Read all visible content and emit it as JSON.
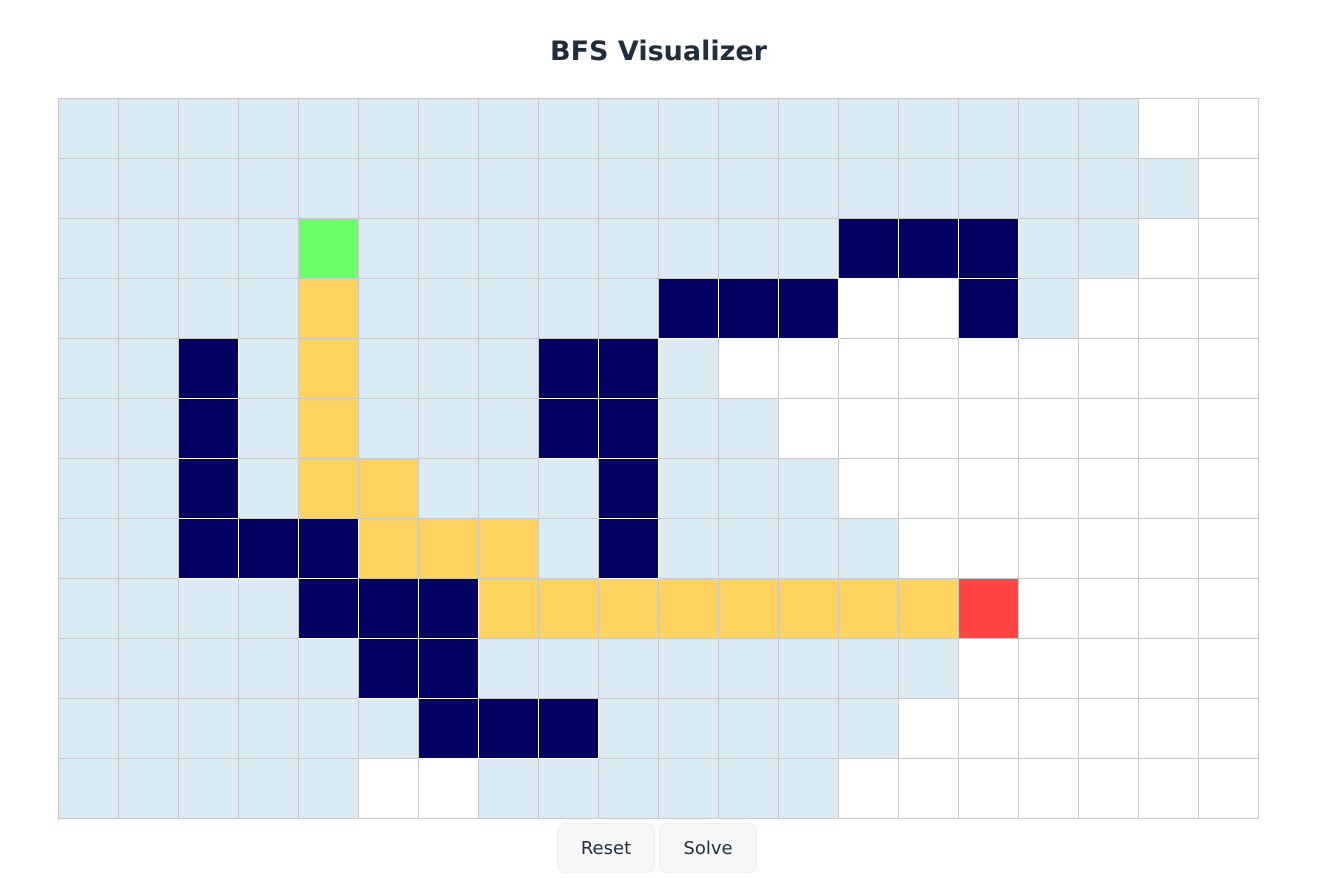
{
  "title": "BFS Visualizer",
  "controls": {
    "reset_label": "Reset",
    "solve_label": "Solve"
  },
  "colors": {
    "empty": "#ffffff",
    "visited": "#dbebf4",
    "wall": "#020263",
    "path": "#fed360",
    "start": "#6bff6b",
    "end": "#ff4444",
    "gridline": "#c8c8cc"
  },
  "grid": {
    "rows": 12,
    "cols": 20,
    "legend": {
      ".": "empty",
      "v": "visited",
      "W": "wall",
      "p": "path",
      "S": "start",
      "E": "end"
    },
    "cells": [
      "vvvvvvvvvvvvvvvvvv..",
      "vvvvvvvvvvvvvvvvvvv.",
      "vvvvSvvvvvvvvWWWvv..",
      "vvvvpvvvvvWWW..Wv...",
      "vvWvpvvvWWv.........",
      "vvWvpvvvWWvv........",
      "vvWvppvvvWvvv.......",
      "vvWWWpppvWvvvv......",
      "vvvvWWWppppppppE....",
      "vvvvvWWvvvvvvvv.....",
      "vvvvvvWWWvvvvv......",
      "vvvvv..vvvvvv......."
    ]
  }
}
